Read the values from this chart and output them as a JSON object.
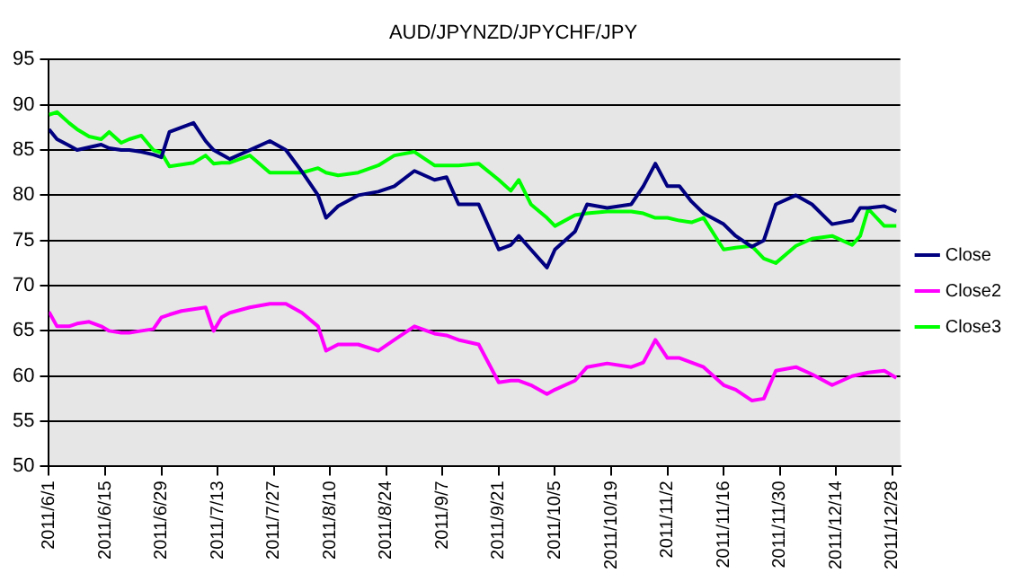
{
  "chart_data": {
    "type": "line",
    "title": "AUD/JPYNZD/JPYCHF/JPY",
    "x": [
      "2011-06-01",
      "2011-06-03",
      "2011-06-06",
      "2011-06-08",
      "2011-06-11",
      "2011-06-14",
      "2011-06-16",
      "2011-06-19",
      "2011-06-21",
      "2011-06-24",
      "2011-06-27",
      "2011-06-29",
      "2011-07-01",
      "2011-07-04",
      "2011-07-07",
      "2011-07-10",
      "2011-07-12",
      "2011-07-14",
      "2011-07-16",
      "2011-07-21",
      "2011-07-26",
      "2011-07-30",
      "2011-08-03",
      "2011-08-07",
      "2011-08-09",
      "2011-08-12",
      "2011-08-17",
      "2011-08-22",
      "2011-08-26",
      "2011-08-31",
      "2011-09-05",
      "2011-09-08",
      "2011-09-11",
      "2011-09-16",
      "2011-09-21",
      "2011-09-24",
      "2011-09-26",
      "2011-09-29",
      "2011-10-03",
      "2011-10-05",
      "2011-10-10",
      "2011-10-13",
      "2011-10-18",
      "2011-10-24",
      "2011-10-27",
      "2011-10-30",
      "2011-11-02",
      "2011-11-05",
      "2011-11-08",
      "2011-11-11",
      "2011-11-16",
      "2011-11-19",
      "2011-11-23",
      "2011-11-26",
      "2011-11-29",
      "2011-12-04",
      "2011-12-08",
      "2011-12-13",
      "2011-12-18",
      "2011-12-20",
      "2011-12-22",
      "2011-12-26",
      "2011-12-29"
    ],
    "series": [
      {
        "name": "Close",
        "color": "#000080",
        "values": [
          87.3,
          86.2,
          85.5,
          85,
          85.3,
          85.6,
          85.2,
          85,
          85,
          84.8,
          84.5,
          84.2,
          87,
          87.5,
          88,
          86,
          85,
          84.5,
          84,
          85,
          86,
          85,
          82.6,
          80,
          77.5,
          78.8,
          80,
          80.4,
          81,
          82.7,
          81.7,
          82,
          79,
          79,
          74,
          74.5,
          75.5,
          74,
          72,
          74,
          76,
          79,
          78.6,
          79,
          81,
          83.5,
          81,
          81,
          79.3,
          78,
          76.8,
          75.5,
          74.3,
          75,
          79,
          80,
          79,
          76.8,
          77.2,
          78.6,
          78.6,
          78.8,
          78.2
        ]
      },
      {
        "name": "Close2",
        "color": "#ff00ff",
        "values": [
          67.1,
          65.5,
          65.5,
          65.8,
          66,
          65.5,
          65,
          64.8,
          64.8,
          65,
          65.2,
          66.5,
          66.8,
          67.2,
          67.4,
          67.6,
          65,
          66.5,
          67,
          67.6,
          68,
          68,
          67,
          65.5,
          62.8,
          63.5,
          63.5,
          62.8,
          64,
          65.5,
          64.7,
          64.5,
          64,
          63.5,
          59.3,
          59.5,
          59.5,
          59,
          58,
          58.5,
          59.5,
          61,
          61.4,
          61,
          61.5,
          64,
          62,
          62,
          61.5,
          61,
          59,
          58.5,
          57.3,
          57.5,
          60.6,
          61,
          60.2,
          59,
          60,
          60.2,
          60.4,
          60.6,
          59.8
        ]
      },
      {
        "name": "Close3",
        "color": "#00ff00",
        "values": [
          88.9,
          89.2,
          88,
          87.3,
          86.5,
          86.2,
          87,
          85.8,
          86.2,
          86.6,
          85,
          84.7,
          83.2,
          83.4,
          83.6,
          84.4,
          83.5,
          83.6,
          83.6,
          84.4,
          82.5,
          82.5,
          82.5,
          83,
          82.5,
          82.2,
          82.5,
          83.3,
          84.4,
          84.8,
          83.3,
          83.3,
          83.3,
          83.5,
          81.7,
          80.5,
          81.7,
          79,
          77.5,
          76.6,
          77.8,
          78,
          78.2,
          78.2,
          78,
          77.5,
          77.5,
          77.2,
          77,
          77.5,
          74,
          74.2,
          74.4,
          73,
          72.5,
          74.4,
          75.2,
          75.5,
          74.5,
          75.5,
          78.5,
          76.6,
          76.6
        ]
      }
    ],
    "xlim": [
      "2011-06-01",
      "2011-12-30"
    ],
    "xticks": [
      {
        "value": "2011-06-01",
        "label": "2011/6/1"
      },
      {
        "value": "2011-06-15",
        "label": "2011/6/15"
      },
      {
        "value": "2011-06-29",
        "label": "2011/6/29"
      },
      {
        "value": "2011-07-13",
        "label": "2011/7/13"
      },
      {
        "value": "2011-07-27",
        "label": "2011/7/27"
      },
      {
        "value": "2011-08-10",
        "label": "2011/8/10"
      },
      {
        "value": "2011-08-24",
        "label": "2011/8/24"
      },
      {
        "value": "2011-09-07",
        "label": "2011/9/7"
      },
      {
        "value": "2011-09-21",
        "label": "2011/9/21"
      },
      {
        "value": "2011-10-05",
        "label": "2011/10/5"
      },
      {
        "value": "2011-10-19",
        "label": "2011/10/19"
      },
      {
        "value": "2011-11-02",
        "label": "2011/11/2"
      },
      {
        "value": "2011-11-16",
        "label": "2011/11/16"
      },
      {
        "value": "2011-11-30",
        "label": "2011/11/30"
      },
      {
        "value": "2011-12-14",
        "label": "2011/12/14"
      },
      {
        "value": "2011-12-28",
        "label": "2011/12/28"
      }
    ],
    "ylim": [
      50,
      95
    ],
    "yticks": [
      50,
      55,
      60,
      65,
      70,
      75,
      80,
      85,
      90,
      95
    ],
    "grid": "y",
    "legend": "right",
    "marker": "none",
    "line_style": "solid"
  }
}
